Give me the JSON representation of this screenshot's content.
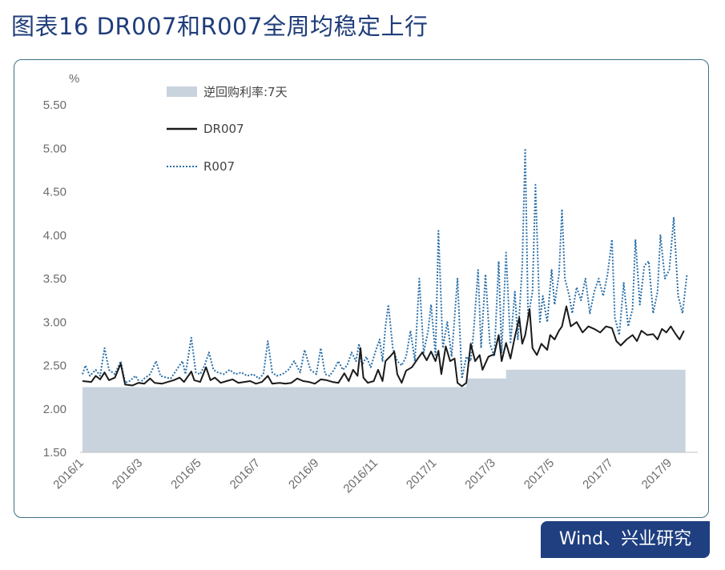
{
  "figure": {
    "title": "图表16  DR007和R007全周均稳定上行",
    "source": "Wind、兴业研究"
  },
  "colors": {
    "title": "#1f3d7a",
    "frame": "#3f6f88",
    "area": "#c9d3de",
    "dr007": "#1a1a1a",
    "r007": "#2a6fa8",
    "source_bg": "#1f3f80",
    "tick": "#6b6b6b"
  },
  "chart_data": {
    "type": "line",
    "yunit": "%",
    "ylim": [
      1.5,
      5.5
    ],
    "yticks": [
      "1.50",
      "2.00",
      "2.50",
      "3.00",
      "3.50",
      "4.00",
      "4.50",
      "5.00",
      "5.50"
    ],
    "xlim": [
      0,
      20.7
    ],
    "x_axis": "month index from 2016/1",
    "xticks": [
      {
        "x": 0,
        "label": "2016/1"
      },
      {
        "x": 2,
        "label": "2016/3"
      },
      {
        "x": 4,
        "label": "2016/5"
      },
      {
        "x": 6,
        "label": "2016/7"
      },
      {
        "x": 8,
        "label": "2016/9"
      },
      {
        "x": 10,
        "label": "2016/11"
      },
      {
        "x": 12,
        "label": "2017/1"
      },
      {
        "x": 14,
        "label": "2017/3"
      },
      {
        "x": 16,
        "label": "2017/5"
      },
      {
        "x": 18,
        "label": "2017/7"
      },
      {
        "x": 20,
        "label": "2017/9"
      }
    ],
    "grid": false,
    "legend": "top-left",
    "series": [
      {
        "name": "逆回购利率:7天",
        "style": "area",
        "points": [
          [
            0,
            2.25
          ],
          [
            13.05,
            2.25
          ],
          [
            13.05,
            2.35
          ],
          [
            14.4,
            2.35
          ],
          [
            14.4,
            2.45
          ],
          [
            20.5,
            2.45
          ]
        ]
      },
      {
        "name": "DR007",
        "style": "solid",
        "points": [
          [
            0.0,
            2.32
          ],
          [
            0.3,
            2.31
          ],
          [
            0.45,
            2.38
          ],
          [
            0.6,
            2.34
          ],
          [
            0.75,
            2.42
          ],
          [
            0.9,
            2.33
          ],
          [
            1.1,
            2.36
          ],
          [
            1.3,
            2.52
          ],
          [
            1.45,
            2.28
          ],
          [
            1.7,
            2.27
          ],
          [
            1.9,
            2.3
          ],
          [
            2.1,
            2.29
          ],
          [
            2.3,
            2.35
          ],
          [
            2.45,
            2.3
          ],
          [
            2.7,
            2.29
          ],
          [
            2.9,
            2.31
          ],
          [
            3.1,
            2.33
          ],
          [
            3.3,
            2.36
          ],
          [
            3.45,
            2.31
          ],
          [
            3.7,
            2.43
          ],
          [
            3.8,
            2.33
          ],
          [
            4.0,
            2.31
          ],
          [
            4.2,
            2.48
          ],
          [
            4.35,
            2.33
          ],
          [
            4.5,
            2.36
          ],
          [
            4.7,
            2.3
          ],
          [
            4.9,
            2.32
          ],
          [
            5.1,
            2.34
          ],
          [
            5.3,
            2.3
          ],
          [
            5.5,
            2.31
          ],
          [
            5.7,
            2.32
          ],
          [
            5.9,
            2.29
          ],
          [
            6.1,
            2.31
          ],
          [
            6.3,
            2.38
          ],
          [
            6.45,
            2.29
          ],
          [
            6.7,
            2.3
          ],
          [
            6.9,
            2.29
          ],
          [
            7.1,
            2.3
          ],
          [
            7.3,
            2.35
          ],
          [
            7.5,
            2.32
          ],
          [
            7.7,
            2.31
          ],
          [
            7.9,
            2.29
          ],
          [
            8.1,
            2.34
          ],
          [
            8.3,
            2.33
          ],
          [
            8.5,
            2.31
          ],
          [
            8.7,
            2.3
          ],
          [
            8.9,
            2.41
          ],
          [
            9.05,
            2.32
          ],
          [
            9.2,
            2.45
          ],
          [
            9.35,
            2.38
          ],
          [
            9.45,
            2.7
          ],
          [
            9.55,
            2.36
          ],
          [
            9.7,
            2.3
          ],
          [
            9.9,
            2.32
          ],
          [
            10.05,
            2.45
          ],
          [
            10.2,
            2.32
          ],
          [
            10.3,
            2.55
          ],
          [
            10.45,
            2.6
          ],
          [
            10.6,
            2.66
          ],
          [
            10.7,
            2.4
          ],
          [
            10.85,
            2.3
          ],
          [
            11.0,
            2.44
          ],
          [
            11.2,
            2.48
          ],
          [
            11.4,
            2.58
          ],
          [
            11.55,
            2.65
          ],
          [
            11.7,
            2.56
          ],
          [
            11.85,
            2.66
          ],
          [
            12.0,
            2.55
          ],
          [
            12.1,
            2.67
          ],
          [
            12.2,
            2.4
          ],
          [
            12.35,
            2.72
          ],
          [
            12.5,
            2.55
          ],
          [
            12.65,
            2.58
          ],
          [
            12.75,
            2.3
          ],
          [
            12.9,
            2.26
          ],
          [
            13.05,
            2.3
          ],
          [
            13.2,
            2.75
          ],
          [
            13.35,
            2.55
          ],
          [
            13.5,
            2.62
          ],
          [
            13.6,
            2.45
          ],
          [
            13.8,
            2.6
          ],
          [
            14.0,
            2.63
          ],
          [
            14.15,
            2.85
          ],
          [
            14.25,
            2.55
          ],
          [
            14.4,
            2.76
          ],
          [
            14.55,
            2.58
          ],
          [
            14.7,
            2.83
          ],
          [
            14.85,
            3.05
          ],
          [
            14.95,
            2.75
          ],
          [
            15.05,
            2.85
          ],
          [
            15.2,
            3.15
          ],
          [
            15.3,
            2.7
          ],
          [
            15.45,
            2.62
          ],
          [
            15.6,
            2.75
          ],
          [
            15.8,
            2.68
          ],
          [
            15.9,
            2.85
          ],
          [
            16.05,
            2.8
          ],
          [
            16.2,
            2.9
          ],
          [
            16.3,
            2.95
          ],
          [
            16.45,
            3.18
          ],
          [
            16.6,
            2.95
          ],
          [
            16.8,
            3.0
          ],
          [
            17.0,
            2.88
          ],
          [
            17.2,
            2.95
          ],
          [
            17.4,
            2.92
          ],
          [
            17.6,
            2.88
          ],
          [
            17.8,
            2.95
          ],
          [
            18.0,
            2.93
          ],
          [
            18.15,
            2.78
          ],
          [
            18.3,
            2.73
          ],
          [
            18.5,
            2.8
          ],
          [
            18.7,
            2.85
          ],
          [
            18.85,
            2.78
          ],
          [
            19.0,
            2.9
          ],
          [
            19.2,
            2.85
          ],
          [
            19.4,
            2.86
          ],
          [
            19.55,
            2.8
          ],
          [
            19.7,
            2.92
          ],
          [
            19.85,
            2.88
          ],
          [
            20.0,
            2.95
          ],
          [
            20.15,
            2.87
          ],
          [
            20.3,
            2.8
          ],
          [
            20.45,
            2.9
          ]
        ]
      },
      {
        "name": "R007",
        "style": "dotted",
        "points": [
          [
            0.0,
            2.4
          ],
          [
            0.1,
            2.5
          ],
          [
            0.25,
            2.38
          ],
          [
            0.45,
            2.45
          ],
          [
            0.6,
            2.38
          ],
          [
            0.75,
            2.7
          ],
          [
            0.9,
            2.45
          ],
          [
            1.1,
            2.4
          ],
          [
            1.3,
            2.55
          ],
          [
            1.45,
            2.3
          ],
          [
            1.6,
            2.32
          ],
          [
            1.8,
            2.38
          ],
          [
            1.95,
            2.3
          ],
          [
            2.1,
            2.35
          ],
          [
            2.3,
            2.4
          ],
          [
            2.5,
            2.55
          ],
          [
            2.65,
            2.38
          ],
          [
            2.85,
            2.36
          ],
          [
            3.0,
            2.35
          ],
          [
            3.2,
            2.45
          ],
          [
            3.4,
            2.55
          ],
          [
            3.5,
            2.4
          ],
          [
            3.7,
            2.82
          ],
          [
            3.85,
            2.42
          ],
          [
            4.0,
            2.4
          ],
          [
            4.15,
            2.5
          ],
          [
            4.3,
            2.65
          ],
          [
            4.45,
            2.45
          ],
          [
            4.6,
            2.42
          ],
          [
            4.8,
            2.4
          ],
          [
            5.0,
            2.45
          ],
          [
            5.2,
            2.4
          ],
          [
            5.4,
            2.42
          ],
          [
            5.6,
            2.38
          ],
          [
            5.8,
            2.4
          ],
          [
            6.0,
            2.35
          ],
          [
            6.15,
            2.4
          ],
          [
            6.3,
            2.78
          ],
          [
            6.45,
            2.42
          ],
          [
            6.6,
            2.38
          ],
          [
            6.8,
            2.4
          ],
          [
            7.0,
            2.45
          ],
          [
            7.2,
            2.55
          ],
          [
            7.4,
            2.42
          ],
          [
            7.55,
            2.68
          ],
          [
            7.75,
            2.45
          ],
          [
            7.95,
            2.4
          ],
          [
            8.1,
            2.7
          ],
          [
            8.25,
            2.4
          ],
          [
            8.4,
            2.38
          ],
          [
            8.55,
            2.45
          ],
          [
            8.7,
            2.55
          ],
          [
            8.85,
            2.45
          ],
          [
            9.0,
            2.5
          ],
          [
            9.15,
            2.65
          ],
          [
            9.3,
            2.55
          ],
          [
            9.4,
            2.75
          ],
          [
            9.5,
            2.5
          ],
          [
            9.65,
            2.6
          ],
          [
            9.8,
            2.48
          ],
          [
            9.95,
            2.65
          ],
          [
            10.1,
            2.8
          ],
          [
            10.2,
            2.55
          ],
          [
            10.3,
            2.95
          ],
          [
            10.4,
            3.2
          ],
          [
            10.55,
            2.7
          ],
          [
            10.7,
            2.55
          ],
          [
            10.85,
            2.5
          ],
          [
            11.0,
            2.6
          ],
          [
            11.15,
            2.9
          ],
          [
            11.3,
            2.55
          ],
          [
            11.45,
            3.5
          ],
          [
            11.6,
            2.65
          ],
          [
            11.75,
            2.9
          ],
          [
            11.85,
            3.2
          ],
          [
            12.0,
            2.62
          ],
          [
            12.1,
            4.05
          ],
          [
            12.25,
            2.7
          ],
          [
            12.4,
            3.0
          ],
          [
            12.55,
            2.6
          ],
          [
            12.75,
            3.5
          ],
          [
            12.9,
            2.35
          ],
          [
            13.05,
            2.6
          ],
          [
            13.2,
            2.55
          ],
          [
            13.3,
            2.9
          ],
          [
            13.45,
            3.6
          ],
          [
            13.55,
            2.7
          ],
          [
            13.7,
            3.55
          ],
          [
            13.85,
            2.75
          ],
          [
            14.0,
            2.6
          ],
          [
            14.15,
            3.7
          ],
          [
            14.25,
            2.65
          ],
          [
            14.4,
            3.8
          ],
          [
            14.55,
            2.75
          ],
          [
            14.7,
            3.35
          ],
          [
            14.8,
            2.8
          ],
          [
            14.95,
            3.65
          ],
          [
            15.05,
            5.0
          ],
          [
            15.15,
            3.05
          ],
          [
            15.3,
            3.35
          ],
          [
            15.4,
            4.58
          ],
          [
            15.55,
            3.0
          ],
          [
            15.65,
            3.3
          ],
          [
            15.8,
            3.0
          ],
          [
            15.95,
            3.6
          ],
          [
            16.05,
            3.2
          ],
          [
            16.2,
            3.55
          ],
          [
            16.3,
            4.3
          ],
          [
            16.4,
            3.5
          ],
          [
            16.55,
            3.3
          ],
          [
            16.65,
            3.1
          ],
          [
            16.8,
            3.4
          ],
          [
            16.95,
            3.25
          ],
          [
            17.1,
            3.5
          ],
          [
            17.25,
            3.1
          ],
          [
            17.4,
            3.35
          ],
          [
            17.55,
            3.5
          ],
          [
            17.7,
            3.3
          ],
          [
            17.85,
            3.55
          ],
          [
            18.0,
            3.95
          ],
          [
            18.1,
            3.05
          ],
          [
            18.25,
            2.85
          ],
          [
            18.4,
            3.45
          ],
          [
            18.55,
            2.95
          ],
          [
            18.7,
            3.15
          ],
          [
            18.8,
            3.95
          ],
          [
            18.95,
            3.2
          ],
          [
            19.1,
            3.65
          ],
          [
            19.25,
            3.7
          ],
          [
            19.4,
            3.1
          ],
          [
            19.55,
            3.35
          ],
          [
            19.65,
            4.0
          ],
          [
            19.8,
            3.5
          ],
          [
            19.95,
            3.6
          ],
          [
            20.1,
            4.2
          ],
          [
            20.25,
            3.3
          ],
          [
            20.4,
            3.1
          ],
          [
            20.55,
            3.55
          ]
        ]
      }
    ]
  }
}
